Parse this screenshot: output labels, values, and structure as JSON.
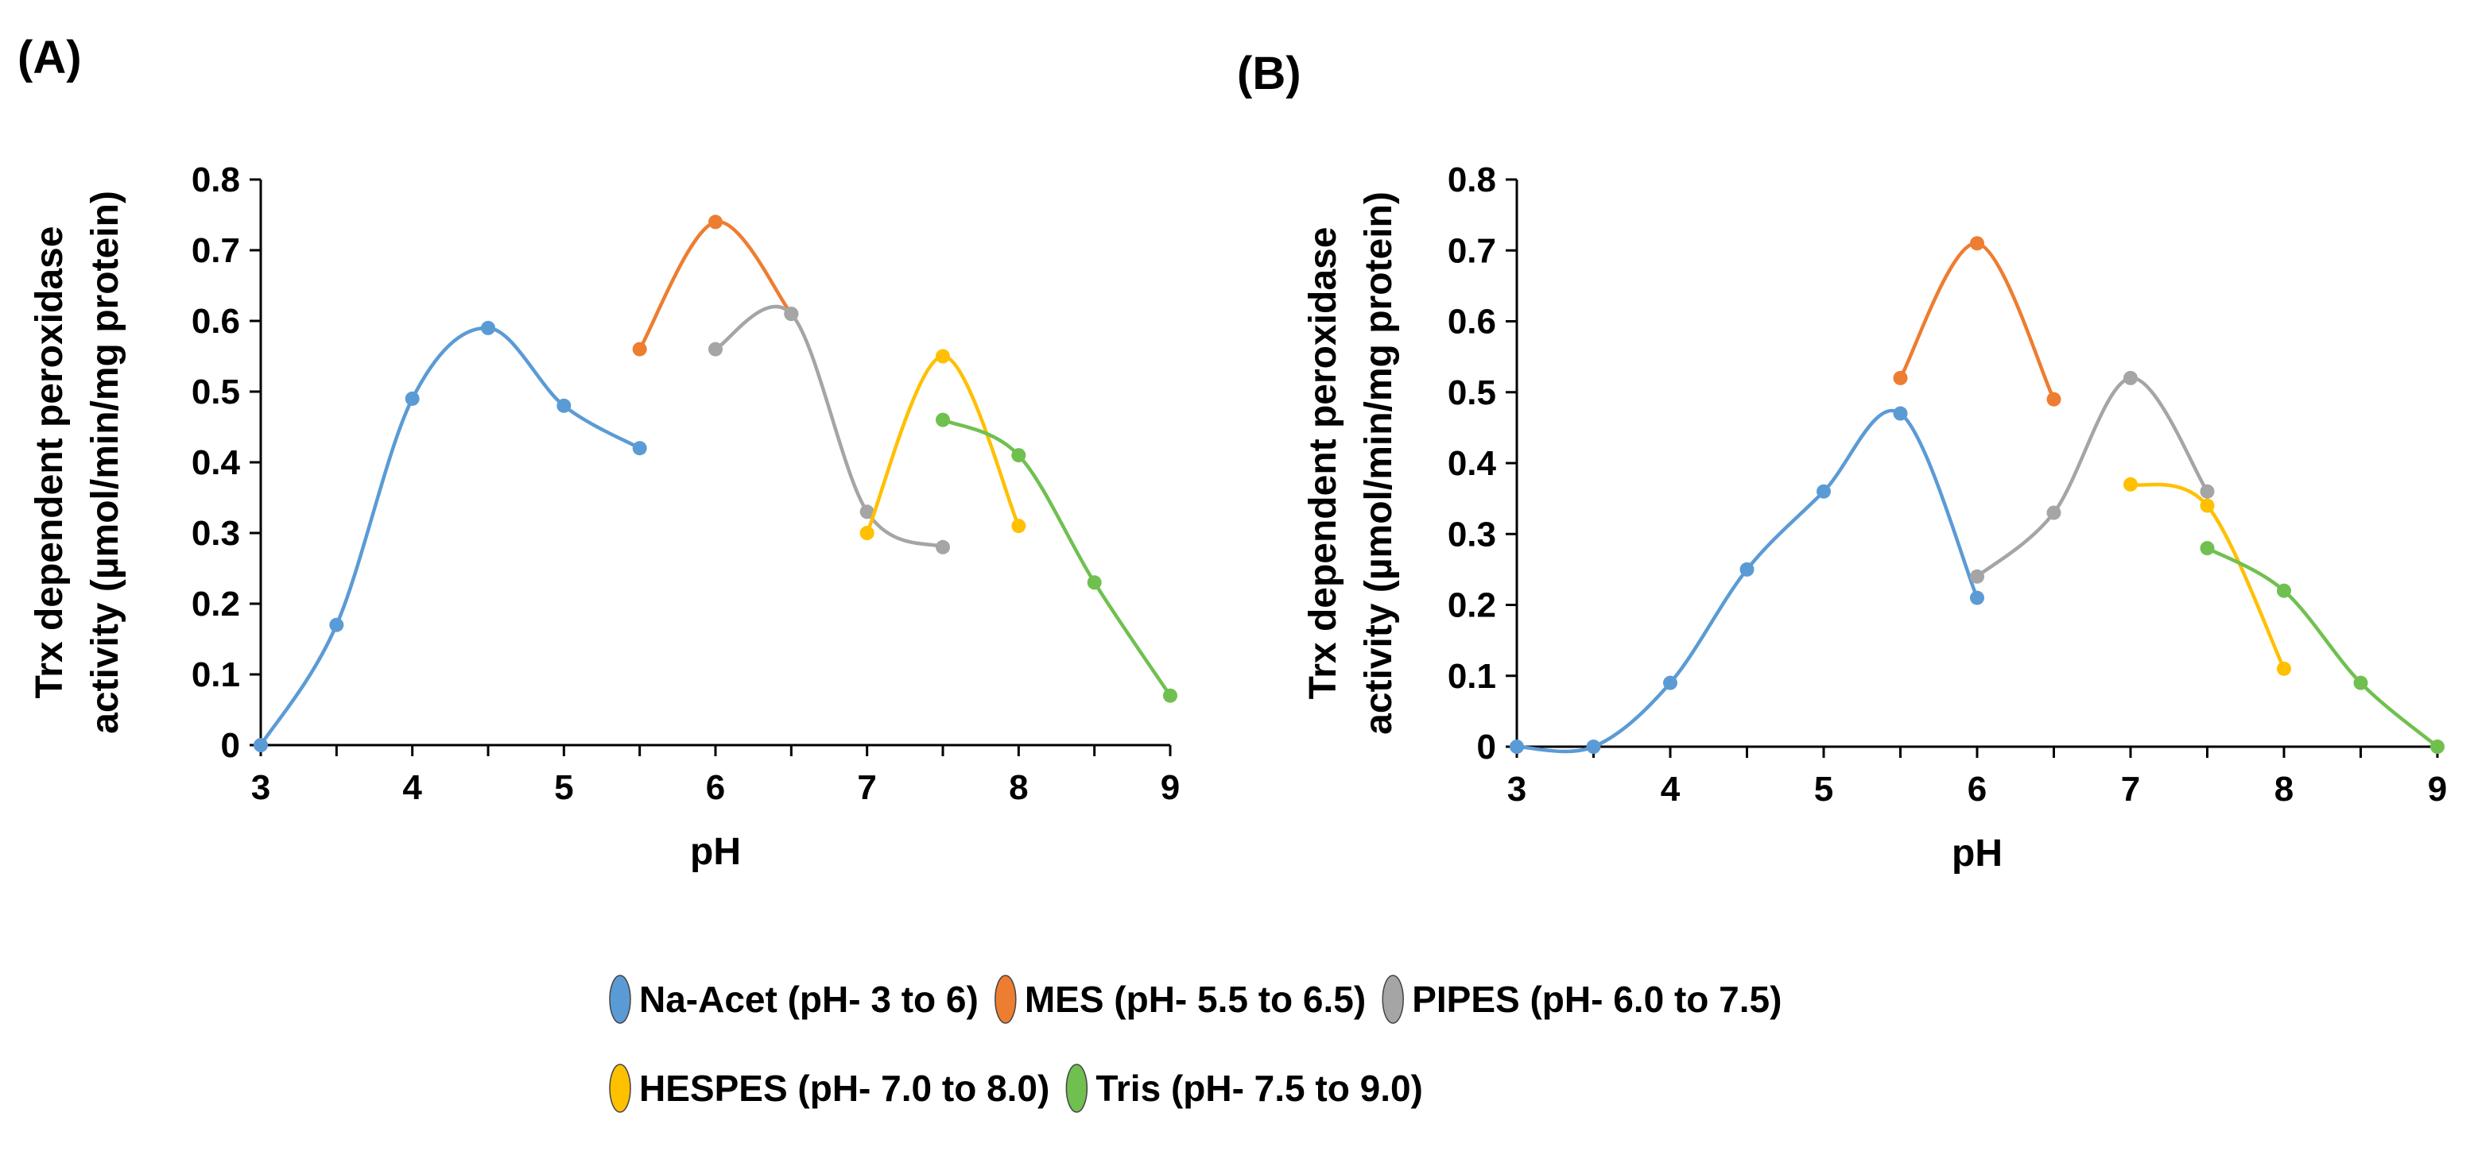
{
  "chart_data": [
    {
      "panel_label": "(A)",
      "type": "line",
      "xlabel": "pH",
      "ylabel_line1": "Trx dependent peroxidase",
      "ylabel_line2": "activity (µmol/min/mg protein)",
      "xlim": [
        3,
        9
      ],
      "ylim": [
        0,
        0.8
      ],
      "x_ticks": [
        "3",
        "4",
        "5",
        "6",
        "7",
        "8",
        "9"
      ],
      "y_ticks": [
        "0",
        "0.1",
        "0.2",
        "0.3",
        "0.4",
        "0.5",
        "0.6",
        "0.7",
        "0.8"
      ],
      "series": [
        {
          "name": "Na-Acet",
          "color": "#5B9BD5",
          "x": [
            3,
            3.5,
            4,
            4.5,
            5,
            5.5
          ],
          "y": [
            0.0,
            0.17,
            0.49,
            0.59,
            0.48,
            0.42
          ]
        },
        {
          "name": "MES",
          "color": "#ED7D31",
          "x": [
            5.5,
            6,
            6.5
          ],
          "y": [
            0.56,
            0.74,
            0.61
          ]
        },
        {
          "name": "PIPES",
          "color": "#A5A5A5",
          "x": [
            6,
            6.5,
            7,
            7.5
          ],
          "y": [
            0.56,
            0.61,
            0.33,
            0.28
          ]
        },
        {
          "name": "HESPES",
          "color": "#FFC000",
          "x": [
            7,
            7.5,
            8
          ],
          "y": [
            0.3,
            0.55,
            0.31
          ]
        },
        {
          "name": "Tris",
          "color": "#70C050",
          "x": [
            7.5,
            8,
            8.5,
            9
          ],
          "y": [
            0.46,
            0.41,
            0.23,
            0.07
          ]
        }
      ]
    },
    {
      "panel_label": "(B)",
      "type": "line",
      "xlabel": "pH",
      "ylabel_line1": "Trx dependent peroxidase",
      "ylabel_line2": "activity (µmol/min/mg protein)",
      "xlim": [
        3,
        9
      ],
      "ylim": [
        0,
        0.8
      ],
      "x_ticks": [
        "3",
        "4",
        "5",
        "6",
        "7",
        "8",
        "9"
      ],
      "y_ticks": [
        "0",
        "0.1",
        "0.2",
        "0.3",
        "0.4",
        "0.5",
        "0.6",
        "0.7",
        "0.8"
      ],
      "series": [
        {
          "name": "Na-Acet",
          "color": "#5B9BD5",
          "x": [
            3,
            3.5,
            4,
            4.5,
            5,
            5.5,
            6
          ],
          "y": [
            0.0,
            0.0,
            0.09,
            0.25,
            0.36,
            0.47,
            0.21
          ]
        },
        {
          "name": "MES",
          "color": "#ED7D31",
          "x": [
            5.5,
            6,
            6.5
          ],
          "y": [
            0.52,
            0.71,
            0.49
          ]
        },
        {
          "name": "PIPES",
          "color": "#A5A5A5",
          "x": [
            6,
            6.5,
            7,
            7.5
          ],
          "y": [
            0.24,
            0.33,
            0.52,
            0.36
          ]
        },
        {
          "name": "HESPES",
          "color": "#FFC000",
          "x": [
            7,
            7.5,
            8
          ],
          "y": [
            0.37,
            0.34,
            0.11
          ]
        },
        {
          "name": "Tris",
          "color": "#70C050",
          "x": [
            7.5,
            8,
            8.5,
            9
          ],
          "y": [
            0.28,
            0.22,
            0.09,
            0.0
          ]
        }
      ]
    }
  ],
  "legend": {
    "items": [
      {
        "label": "Na-Acet (pH- 3 to 6)",
        "color": "#5B9BD5"
      },
      {
        "label": "MES (pH- 5.5 to 6.5)",
        "color": "#ED7D31"
      },
      {
        "label": "PIPES (pH- 6.0 to 7.5)",
        "color": "#A5A5A5"
      },
      {
        "label": "HESPES (pH- 7.0 to 8.0)",
        "color": "#FFC000"
      },
      {
        "label": "Tris (pH- 7.5 to 9.0)",
        "color": "#70C050"
      }
    ]
  }
}
